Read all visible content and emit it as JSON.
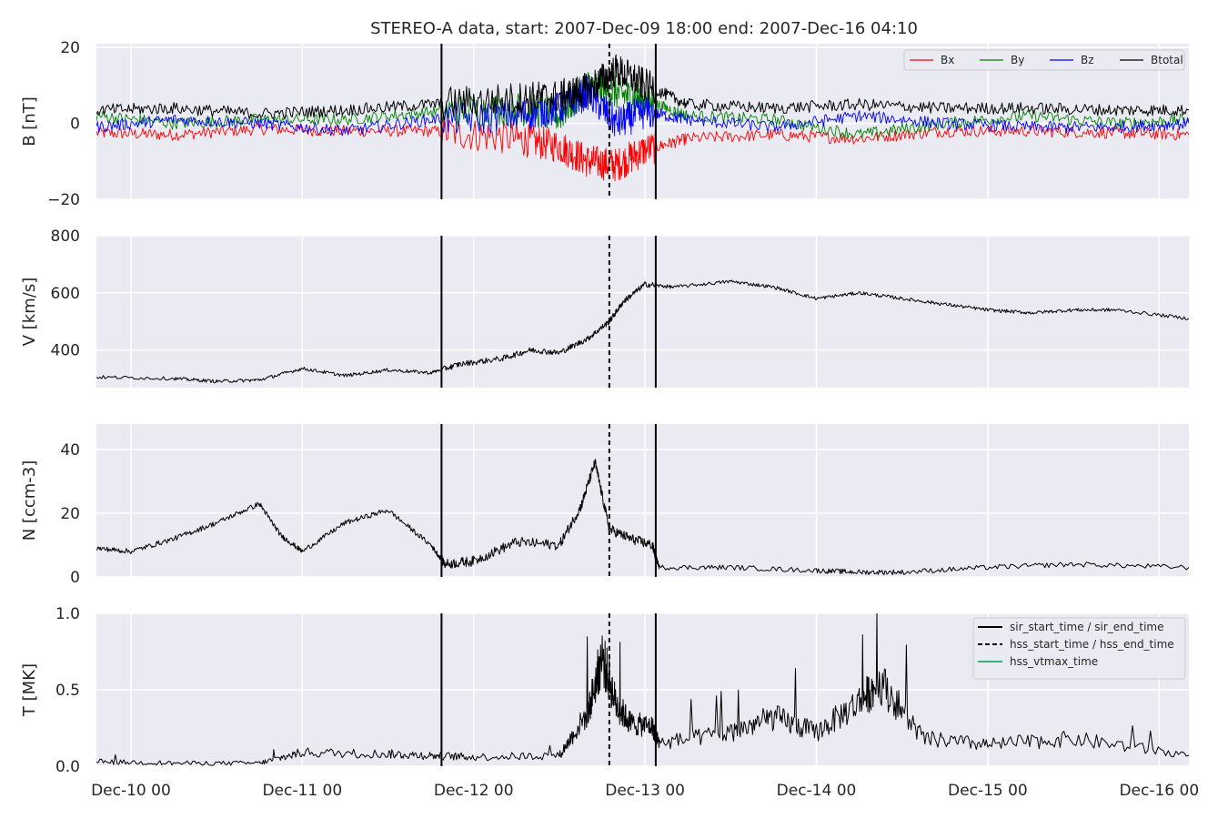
{
  "chart_data": {
    "type": "line",
    "title": "STEREO-A data, start: 2007-Dec-09 18:00  end: 2007-Dec-16 04:10",
    "time_range": [
      "2007-12-09 18:00",
      "2007-12-16 04:10"
    ],
    "x_axis_range": [
      "2007-12-09 19:10",
      "2007-12-16 04:10"
    ],
    "x_ticks": [
      {
        "time": "2007-12-10 00:00",
        "label": "Dec-10 00"
      },
      {
        "time": "2007-12-11 00:00",
        "label": "Dec-11 00"
      },
      {
        "time": "2007-12-12 00:00",
        "label": "Dec-12 00"
      },
      {
        "time": "2007-12-13 00:00",
        "label": "Dec-13 00"
      },
      {
        "time": "2007-12-14 00:00",
        "label": "Dec-14 00"
      },
      {
        "time": "2007-12-15 00:00",
        "label": "Dec-15 00"
      },
      {
        "time": "2007-12-16 00:00",
        "label": "Dec-16 00"
      }
    ],
    "grid": true,
    "background_color": "#eaeaf2",
    "grid_color": "#ffffff",
    "event_markers": [
      {
        "kind": "sir_start_time",
        "time": "2007-12-11 19:30",
        "style": "solid",
        "color": "#000000"
      },
      {
        "kind": "hss_start_time",
        "time": "2007-12-12 19:00",
        "style": "dashed",
        "color": "#000000"
      },
      {
        "kind": "sir_end_time",
        "time": "2007-12-13 01:30",
        "style": "solid",
        "color": "#000000"
      }
    ],
    "panels": [
      {
        "ylabel": "B [nT]",
        "ylim": [
          -20,
          21
        ],
        "yticks": [
          {
            "value": -20,
            "label": "−20"
          },
          {
            "value": 0,
            "label": "0"
          },
          {
            "value": 20,
            "label": "20"
          }
        ],
        "legend": {
          "position": "top-right",
          "columns": 4
        },
        "series": [
          {
            "name": "Bx",
            "color": "#ff0000",
            "line_width": 0.9,
            "x": [
              "2007-12-09 19:10",
              "2007-12-10 06:00",
              "2007-12-10 18:00",
              "2007-12-11 06:00",
              "2007-12-11 18:00",
              "2007-12-12 06:00",
              "2007-12-12 12:00",
              "2007-12-12 16:00",
              "2007-12-12 20:00",
              "2007-12-13 00:00",
              "2007-12-13 06:00",
              "2007-12-13 18:00",
              "2007-12-14 06:00",
              "2007-12-14 18:00",
              "2007-12-15 06:00",
              "2007-12-15 18:00",
              "2007-12-16 04:10"
            ],
            "y": [
              -2.5,
              -3,
              -1.5,
              -2,
              -2,
              -4,
              -6,
              -10,
              -11,
              -7,
              -4,
              -3,
              -4,
              -2,
              -2,
              -2.5,
              -3
            ]
          },
          {
            "name": "By",
            "color": "#008000",
            "line_width": 0.9,
            "x": [
              "2007-12-09 19:10",
              "2007-12-10 06:00",
              "2007-12-10 18:00",
              "2007-12-11 06:00",
              "2007-12-11 18:00",
              "2007-12-12 06:00",
              "2007-12-12 12:00",
              "2007-12-12 16:00",
              "2007-12-12 20:00",
              "2007-12-13 00:00",
              "2007-12-13 06:00",
              "2007-12-13 18:00",
              "2007-12-14 06:00",
              "2007-12-14 18:00",
              "2007-12-15 06:00",
              "2007-12-15 18:00",
              "2007-12-16 04:10"
            ],
            "y": [
              2,
              0,
              1,
              1,
              3,
              4,
              2,
              10,
              8,
              6,
              2,
              1,
              -3,
              0,
              2,
              0,
              1
            ]
          },
          {
            "name": "Bz",
            "color": "#0000ff",
            "line_width": 0.9,
            "x": [
              "2007-12-09 19:10",
              "2007-12-10 06:00",
              "2007-12-10 18:00",
              "2007-12-11 06:00",
              "2007-12-11 18:00",
              "2007-12-12 06:00",
              "2007-12-12 12:00",
              "2007-12-12 16:00",
              "2007-12-12 20:00",
              "2007-12-13 00:00",
              "2007-12-13 06:00",
              "2007-12-13 18:00",
              "2007-12-14 06:00",
              "2007-12-14 18:00",
              "2007-12-15 06:00",
              "2007-12-15 18:00",
              "2007-12-16 04:10"
            ],
            "y": [
              -1,
              1,
              0,
              -2,
              1,
              2,
              4,
              8,
              0,
              3,
              1,
              -1,
              2,
              0,
              -1,
              -1,
              0
            ]
          },
          {
            "name": "Btotal",
            "color": "#000000",
            "line_width": 1.0,
            "x": [
              "2007-12-09 19:10",
              "2007-12-10 06:00",
              "2007-12-10 18:00",
              "2007-12-11 06:00",
              "2007-12-11 18:00",
              "2007-12-12 06:00",
              "2007-12-12 12:00",
              "2007-12-12 16:00",
              "2007-12-12 20:00",
              "2007-12-13 00:00",
              "2007-12-13 06:00",
              "2007-12-13 18:00",
              "2007-12-14 06:00",
              "2007-12-14 18:00",
              "2007-12-15 06:00",
              "2007-12-15 18:00",
              "2007-12-16 04:10"
            ],
            "y": [
              3.5,
              4,
              2.5,
              3.5,
              5,
              6.5,
              7,
              9,
              14,
              10,
              5,
              4,
              5,
              4,
              4,
              3.5,
              3.5
            ]
          }
        ]
      },
      {
        "ylabel": "V [km/s]",
        "ylim": [
          268,
          800
        ],
        "yticks": [
          {
            "value": 400,
            "label": "400"
          },
          {
            "value": 600,
            "label": "600"
          },
          {
            "value": 800,
            "label": "800"
          }
        ],
        "series": [
          {
            "name": "V",
            "color": "#000000",
            "line_width": 1.0,
            "x": [
              "2007-12-09 19:10",
              "2007-12-10 06:00",
              "2007-12-10 12:00",
              "2007-12-10 18:00",
              "2007-12-11 00:00",
              "2007-12-11 06:00",
              "2007-12-11 12:00",
              "2007-12-11 18:00",
              "2007-12-11 22:00",
              "2007-12-12 04:00",
              "2007-12-12 08:00",
              "2007-12-12 12:00",
              "2007-12-12 16:00",
              "2007-12-12 19:00",
              "2007-12-12 21:00",
              "2007-12-13 00:00",
              "2007-12-13 04:00",
              "2007-12-13 12:00",
              "2007-12-13 18:00",
              "2007-12-14 00:00",
              "2007-12-14 06:00",
              "2007-12-14 12:00",
              "2007-12-14 18:00",
              "2007-12-15 00:00",
              "2007-12-15 06:00",
              "2007-12-15 12:00",
              "2007-12-15 18:00",
              "2007-12-16 04:10"
            ],
            "y": [
              305,
              300,
              290,
              295,
              335,
              310,
              330,
              320,
              350,
              370,
              400,
              390,
              440,
              500,
              570,
              630,
              620,
              640,
              620,
              580,
              600,
              580,
              560,
              540,
              530,
              540,
              540,
              510
            ]
          }
        ]
      },
      {
        "ylabel": "N [ccm-3]",
        "ylim": [
          0,
          48
        ],
        "yticks": [
          {
            "value": 0,
            "label": "0"
          },
          {
            "value": 20,
            "label": "20"
          },
          {
            "value": 40,
            "label": "40"
          }
        ],
        "series": [
          {
            "name": "N",
            "color": "#000000",
            "line_width": 1.0,
            "x": [
              "2007-12-09 19:10",
              "2007-12-10 00:00",
              "2007-12-10 06:00",
              "2007-12-10 12:00",
              "2007-12-10 18:00",
              "2007-12-10 21:00",
              "2007-12-11 00:00",
              "2007-12-11 06:00",
              "2007-12-11 12:00",
              "2007-12-11 18:00",
              "2007-12-11 20:00",
              "2007-12-12 00:00",
              "2007-12-12 06:00",
              "2007-12-12 12:00",
              "2007-12-12 15:00",
              "2007-12-12 17:00",
              "2007-12-12 19:00",
              "2007-12-12 22:00",
              "2007-12-13 01:00",
              "2007-12-13 02:00",
              "2007-12-13 12:00",
              "2007-12-14 00:00",
              "2007-12-14 06:00",
              "2007-12-14 12:00",
              "2007-12-15 00:00",
              "2007-12-15 12:00",
              "2007-12-16 04:10"
            ],
            "y": [
              9,
              8,
              12,
              17,
              23,
              13,
              8,
              17,
              21,
              10,
              4,
              5,
              11,
              10,
              22,
              36,
              15,
              12,
              10,
              3,
              3,
              2,
              1.5,
              1.5,
              3,
              4,
              3
            ]
          }
        ]
      },
      {
        "ylabel": "T [MK]",
        "ylim": [
          0,
          1.0
        ],
        "yticks": [
          {
            "value": 0.0,
            "label": "0.0"
          },
          {
            "value": 0.5,
            "label": "0.5"
          },
          {
            "value": 1.0,
            "label": "1.0"
          }
        ],
        "legend": {
          "position": "top-right",
          "entries": [
            {
              "label": "sir_start_time / sir_end_time",
              "style": "solid",
              "color": "#000000"
            },
            {
              "label": "hss_start_time / hss_end_time",
              "style": "dashed",
              "color": "#000000"
            },
            {
              "label": "hss_vtmax_time",
              "style": "solid",
              "color": "#3cb371"
            }
          ]
        },
        "series": [
          {
            "name": "T",
            "color": "#000000",
            "line_width": 1.0,
            "x": [
              "2007-12-09 19:10",
              "2007-12-10 06:00",
              "2007-12-10 18:00",
              "2007-12-11 00:00",
              "2007-12-11 12:00",
              "2007-12-11 18:00",
              "2007-12-12 00:00",
              "2007-12-12 12:00",
              "2007-12-12 16:00",
              "2007-12-12 18:00",
              "2007-12-12 20:00",
              "2007-12-12 22:00",
              "2007-12-13 01:00",
              "2007-12-13 02:00",
              "2007-12-13 12:00",
              "2007-12-13 18:00",
              "2007-12-14 00:00",
              "2007-12-14 06:00",
              "2007-12-14 09:00",
              "2007-12-14 15:00",
              "2007-12-15 00:00",
              "2007-12-15 12:00",
              "2007-12-16 04:10"
            ],
            "y": [
              0.03,
              0.02,
              0.02,
              0.09,
              0.08,
              0.07,
              0.06,
              0.07,
              0.35,
              0.72,
              0.4,
              0.28,
              0.26,
              0.15,
              0.22,
              0.32,
              0.22,
              0.42,
              0.55,
              0.18,
              0.14,
              0.18,
              0.07
            ]
          }
        ]
      }
    ]
  }
}
